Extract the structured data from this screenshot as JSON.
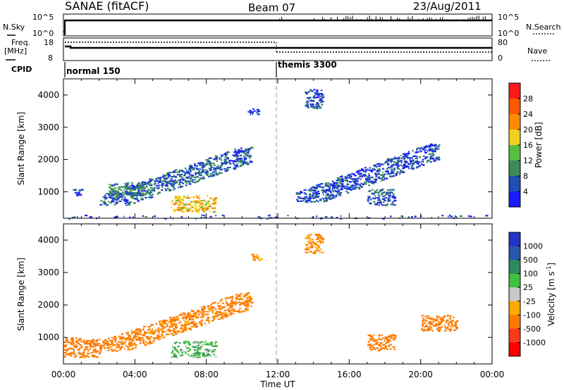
{
  "header": {
    "station": "SANAE (fitACF)",
    "beam": "Beam 07",
    "date": "23/Aug/2011"
  },
  "parameter_panels": {
    "nsky_label": "N.Sky",
    "nsky_ticks": [
      "10^5",
      "10^0"
    ],
    "nsearch_label": "N.Search",
    "nsearch_ticks": [
      "10^5",
      "10^0"
    ],
    "freq_label": "Freq.",
    "freq_unit": "[MHz]",
    "freq_ticks": [
      "18",
      "8"
    ],
    "nave_label": "Nave",
    "nave_ticks": [
      "80",
      "0"
    ],
    "cpid_label": "CPID",
    "cpid_segments": [
      {
        "name": "normal 150",
        "start_hour": 0
      },
      {
        "name": "themis 3300",
        "start_hour": 12
      }
    ]
  },
  "axes": {
    "y_label": "Slant Range [km]",
    "y_ticks": [
      "1000",
      "2000",
      "3000",
      "4000"
    ],
    "x_label": "Time UT",
    "x_ticks": [
      "00:00",
      "04:00",
      "08:00",
      "12:00",
      "16:00",
      "20:00",
      "00:00"
    ]
  },
  "colorbars": {
    "power": {
      "label": "Power [dB]",
      "ticks": [
        "4",
        "8",
        "12",
        "16",
        "20",
        "24",
        "28"
      ],
      "colors": [
        "#1a1aff",
        "#1e4fb4",
        "#3d8a5a",
        "#58c040",
        "#f0d020",
        "#ff8a00",
        "#ff5a00",
        "#ff1a1a"
      ]
    },
    "velocity": {
      "label": "Velocity [m s",
      "label_sup": "-1",
      "label_end": "]",
      "ticks": [
        "1000",
        "500",
        "100",
        "25",
        "-25",
        "-100",
        "-500",
        "-1000"
      ],
      "colors": [
        "#2233cc",
        "#2a55b0",
        "#2e8860",
        "#40c040",
        "#c8c8c8",
        "#ffaa00",
        "#ff7a00",
        "#ff3a1a",
        "#ff0000"
      ]
    }
  },
  "chart_data": [
    {
      "type": "heatmap",
      "title": "Power",
      "xlabel": "Time UT",
      "ylabel": "Slant Range [km]",
      "xlim_hours": [
        0,
        24
      ],
      "ylim_km": [
        180,
        4500
      ],
      "colorbar_label": "Power [dB]",
      "colorbar_range": [
        0,
        30
      ],
      "regions": [
        {
          "t": [
            2.0,
            10.5
          ],
          "r": [
            600,
            2400
          ],
          "power_db": 6
        },
        {
          "t": [
            6.0,
            8.5
          ],
          "r": [
            400,
            900
          ],
          "power_db": 18
        },
        {
          "t": [
            2.5,
            5.0
          ],
          "r": [
            900,
            1300
          ],
          "power_db": 9
        },
        {
          "t": [
            0.5,
            1.0
          ],
          "r": [
            900,
            1100
          ],
          "power_db": 4
        },
        {
          "t": [
            10.3,
            11.0
          ],
          "r": [
            3400,
            3600
          ],
          "power_db": 5
        },
        {
          "t": [
            13.5,
            14.5
          ],
          "r": [
            3600,
            4200
          ],
          "power_db": 5
        },
        {
          "t": [
            13.0,
            21.0
          ],
          "r": [
            700,
            2500
          ],
          "power_db": 5
        },
        {
          "t": [
            17.0,
            18.5
          ],
          "r": [
            600,
            1100
          ],
          "power_db": 6
        },
        {
          "t": [
            0.0,
            24.0
          ],
          "r": [
            180,
            300
          ],
          "power_db": 4
        }
      ]
    },
    {
      "type": "heatmap",
      "title": "Velocity",
      "xlabel": "Time UT",
      "ylabel": "Slant Range [km]",
      "xlim_hours": [
        0,
        24
      ],
      "ylim_km": [
        180,
        4500
      ],
      "colorbar_label": "Velocity [m s-1]",
      "colorbar_range": [
        -1000,
        1000
      ],
      "regions": [
        {
          "t": [
            2.0,
            10.5
          ],
          "r": [
            600,
            2400
          ],
          "velocity": -150
        },
        {
          "t": [
            6.0,
            8.5
          ],
          "r": [
            400,
            900
          ],
          "velocity": 60
        },
        {
          "t": [
            0.0,
            2.0
          ],
          "r": [
            400,
            1000
          ],
          "velocity": -250
        },
        {
          "t": [
            10.3,
            11.0
          ],
          "r": [
            3400,
            3600
          ],
          "velocity": -100
        },
        {
          "t": [
            13.5,
            14.5
          ],
          "r": [
            3600,
            4200
          ],
          "velocity": -120
        },
        {
          "t": [
            17.0,
            18.5
          ],
          "r": [
            600,
            1100
          ],
          "velocity": -400
        },
        {
          "t": [
            20.0,
            22.0
          ],
          "r": [
            1200,
            1700
          ],
          "velocity": -300
        }
      ]
    }
  ]
}
